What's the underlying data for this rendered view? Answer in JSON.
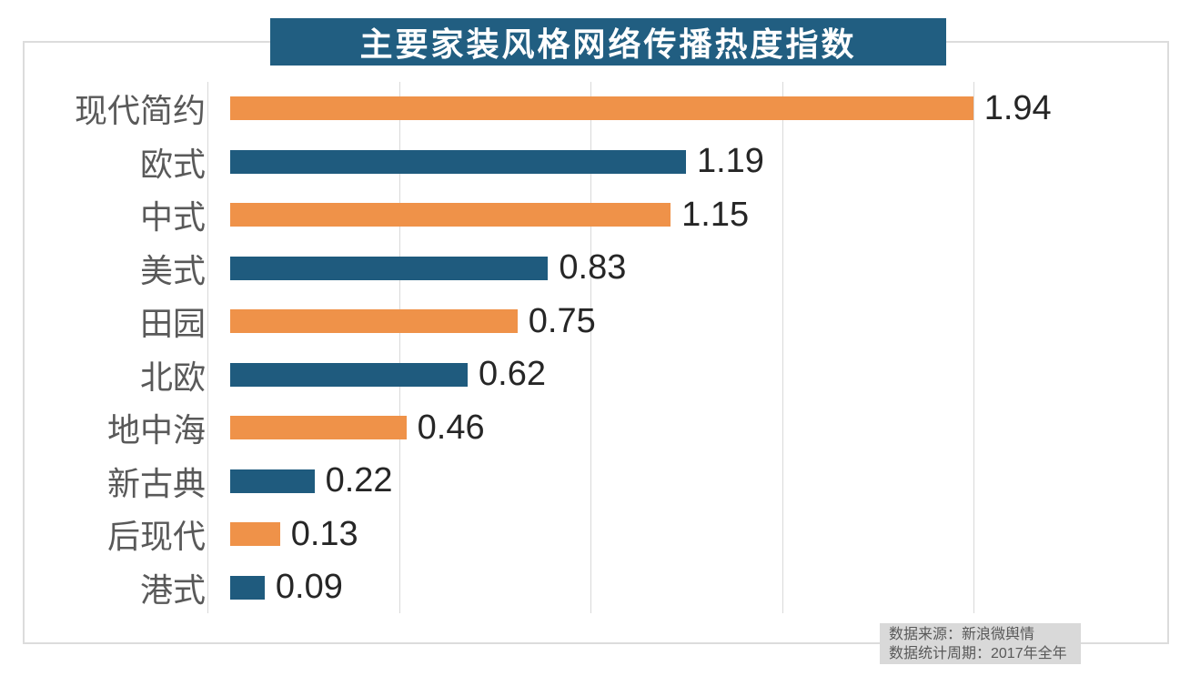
{
  "title": "主要家装风格网络传播热度指数",
  "chart_data": {
    "type": "bar",
    "orientation": "horizontal",
    "title": "主要家装风格网络传播热度指数",
    "categories": [
      "现代简约",
      "欧式",
      "中式",
      "美式",
      "田园",
      "北欧",
      "地中海",
      "新古典",
      "后现代",
      "港式"
    ],
    "values": [
      1.94,
      1.19,
      1.15,
      0.83,
      0.75,
      0.62,
      0.46,
      0.22,
      0.13,
      0.09
    ],
    "value_labels": [
      "1.94",
      "1.19",
      "1.15",
      "0.83",
      "0.75",
      "0.62",
      "0.46",
      "0.22",
      "0.13",
      "0.09"
    ],
    "xlim": [
      0,
      2.0
    ],
    "gridline_values": [
      0,
      0.5,
      1.0,
      1.5,
      2.0
    ],
    "grid": true,
    "legend": false,
    "bar_colors_alternating": [
      "#EF9249",
      "#1F5B7E"
    ],
    "data_labels": "end-of-bar"
  },
  "footer": {
    "source_line": "数据来源：新浪微舆情",
    "period_line": "数据统计周期：2017年全年"
  },
  "colors": {
    "title_bg": "#215E81",
    "title_text": "#FFFFFF",
    "bar_orange": "#EF9249",
    "bar_blue": "#1F5B7E",
    "category_label": "#595959",
    "value_label": "#262626",
    "gridline": "#D9D9D9",
    "frame_border": "#DCDCDC",
    "footer_bg": "#D9D9D9",
    "footer_text": "#595959"
  }
}
